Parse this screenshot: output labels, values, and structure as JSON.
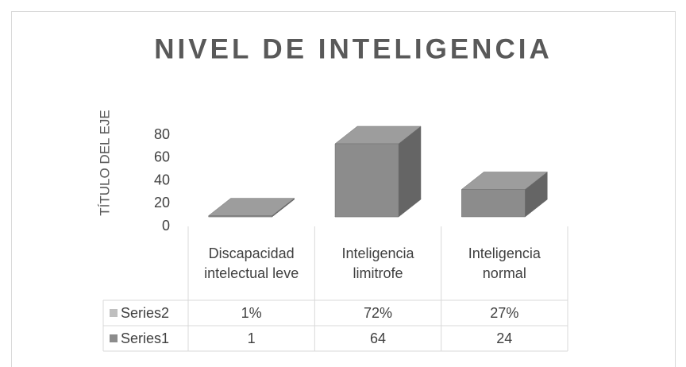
{
  "chart_data": {
    "type": "bar3d",
    "title": "NIVEL DE INTELIGENCIA",
    "y_label": "TÍTULO DEL EJE",
    "categories": [
      "Discapacidad intelectual leve",
      "Inteligencia limitrofe",
      "Inteligencia normal"
    ],
    "series": [
      {
        "name": "Series2",
        "color": "#bfbfbf",
        "values": [
          0.01,
          0.72,
          0.27
        ],
        "value_labels": [
          "1%",
          "72%",
          "27%"
        ]
      },
      {
        "name": "Series1",
        "color": "#8c8c8c",
        "values": [
          1,
          64,
          24
        ]
      }
    ],
    "ylim": [
      0,
      80
    ],
    "yticks": [
      0,
      20,
      40,
      60,
      80
    ],
    "grid": false,
    "data_table": true
  }
}
